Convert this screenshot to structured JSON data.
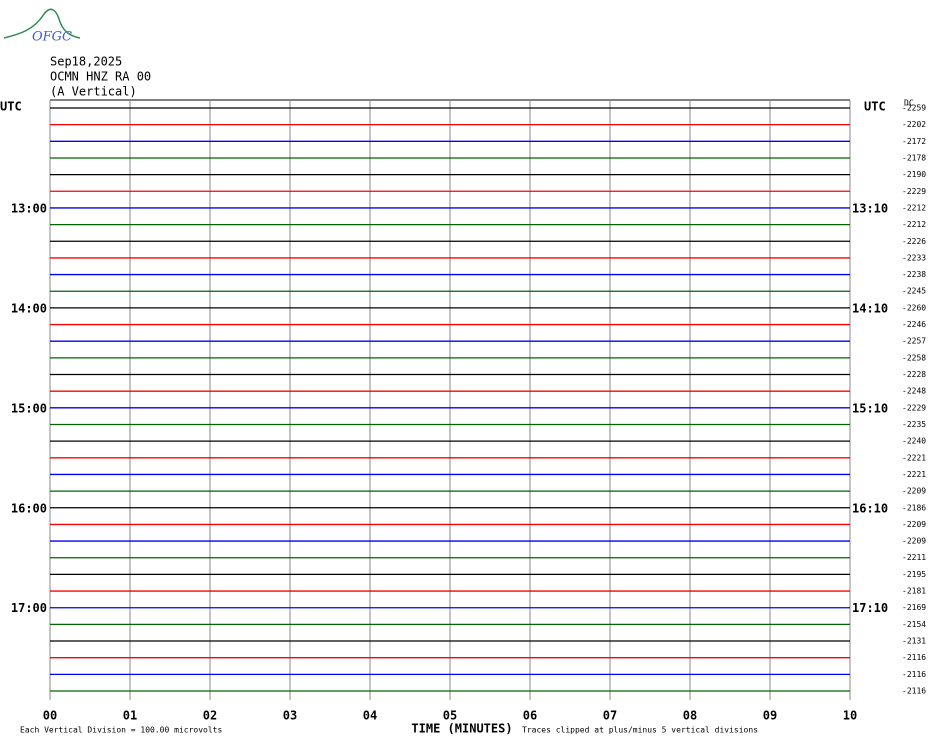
{
  "chart_data": {
    "type": "helicorder",
    "logo": "OFGC",
    "date": "Sep18,2025",
    "station": "OCMN HNZ RA 00",
    "component": "(A Vertical)",
    "left_axis_label": "UTC",
    "right_axis_label": "UTC",
    "dc_header": "DC",
    "trace_colors": [
      "#000000",
      "#ff0000",
      "#0000ff",
      "#006400"
    ],
    "xlim": [
      0,
      10
    ],
    "xticks": [
      {
        "value": 0,
        "label": "00"
      },
      {
        "value": 1,
        "label": "01"
      },
      {
        "value": 2,
        "label": "02"
      },
      {
        "value": 3,
        "label": "03"
      },
      {
        "value": 4,
        "label": "04"
      },
      {
        "value": 5,
        "label": "05"
      },
      {
        "value": 6,
        "label": "06"
      },
      {
        "value": 7,
        "label": "07"
      },
      {
        "value": 8,
        "label": "08"
      },
      {
        "value": 9,
        "label": "09"
      },
      {
        "value": 10,
        "label": "10"
      }
    ],
    "x_label": "TIME (MINUTES)",
    "scale_note": "Each Vertical Division =  100.00 microvolts",
    "clip_note": "Traces clipped at plus/minus 5 vertical divisions",
    "traces": [
      {
        "left": null,
        "right": null,
        "dc": -2259
      },
      {
        "left": null,
        "right": null,
        "dc": -2202
      },
      {
        "left": null,
        "right": null,
        "dc": -2172
      },
      {
        "left": null,
        "right": null,
        "dc": -2178
      },
      {
        "left": null,
        "right": null,
        "dc": -2190
      },
      {
        "left": null,
        "right": null,
        "dc": -2229
      },
      {
        "left": "13:00",
        "right": "13:10",
        "dc": -2212
      },
      {
        "left": null,
        "right": null,
        "dc": -2212
      },
      {
        "left": null,
        "right": null,
        "dc": -2226
      },
      {
        "left": null,
        "right": null,
        "dc": -2233
      },
      {
        "left": null,
        "right": null,
        "dc": -2238
      },
      {
        "left": null,
        "right": null,
        "dc": -2245
      },
      {
        "left": "14:00",
        "right": "14:10",
        "dc": -2260
      },
      {
        "left": null,
        "right": null,
        "dc": -2246
      },
      {
        "left": null,
        "right": null,
        "dc": -2257
      },
      {
        "left": null,
        "right": null,
        "dc": -2258
      },
      {
        "left": null,
        "right": null,
        "dc": -2228
      },
      {
        "left": null,
        "right": null,
        "dc": -2248
      },
      {
        "left": "15:00",
        "right": "15:10",
        "dc": -2229
      },
      {
        "left": null,
        "right": null,
        "dc": -2235
      },
      {
        "left": null,
        "right": null,
        "dc": -2240
      },
      {
        "left": null,
        "right": null,
        "dc": -2221
      },
      {
        "left": null,
        "right": null,
        "dc": -2221
      },
      {
        "left": null,
        "right": null,
        "dc": -2209
      },
      {
        "left": "16:00",
        "right": "16:10",
        "dc": -2186
      },
      {
        "left": null,
        "right": null,
        "dc": -2209
      },
      {
        "left": null,
        "right": null,
        "dc": -2209
      },
      {
        "left": null,
        "right": null,
        "dc": -2211
      },
      {
        "left": null,
        "right": null,
        "dc": -2195
      },
      {
        "left": null,
        "right": null,
        "dc": -2181
      },
      {
        "left": "17:00",
        "right": "17:10",
        "dc": -2169
      },
      {
        "left": null,
        "right": null,
        "dc": -2154
      },
      {
        "left": null,
        "right": null,
        "dc": -2131
      },
      {
        "left": null,
        "right": null,
        "dc": -2116
      },
      {
        "left": null,
        "right": null,
        "dc": -2116
      },
      {
        "left": null,
        "right": null,
        "dc": -2116
      }
    ]
  }
}
